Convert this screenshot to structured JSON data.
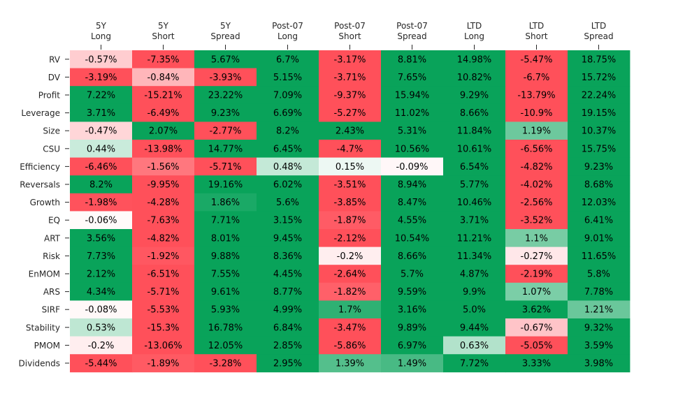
{
  "chart_data": {
    "type": "heatmap",
    "title": "",
    "columns": [
      [
        "5Y",
        "Long"
      ],
      [
        "5Y",
        "Short"
      ],
      [
        "5Y",
        "Spread"
      ],
      [
        "Post-07",
        "Long"
      ],
      [
        "Post-07",
        "Short"
      ],
      [
        "Post-07",
        "Spread"
      ],
      [
        "LTD",
        "Long"
      ],
      [
        "LTD",
        "Short"
      ],
      [
        "LTD",
        "Spread"
      ]
    ],
    "rows": [
      "RV",
      "DV",
      "Profit",
      "Leverage",
      "Size",
      "CSU",
      "Efficiency",
      "Reversals",
      "Growth",
      "EQ",
      "ART",
      "Risk",
      "EnMOM",
      "ARS",
      "SIRF",
      "Stability",
      "PMOM",
      "Dividends"
    ],
    "values": [
      [
        -0.57,
        -7.35,
        5.67,
        6.7,
        -3.17,
        8.81,
        14.98,
        -5.47,
        18.75
      ],
      [
        -3.19,
        -0.84,
        -3.93,
        5.15,
        -3.71,
        7.65,
        10.82,
        -6.7,
        15.72
      ],
      [
        7.22,
        -15.21,
        23.22,
        7.09,
        -9.37,
        15.94,
        9.29,
        -13.79,
        22.24
      ],
      [
        3.71,
        -6.49,
        9.23,
        6.69,
        -5.27,
        11.02,
        8.66,
        -10.9,
        19.15
      ],
      [
        -0.47,
        2.07,
        -2.77,
        8.2,
        2.43,
        5.31,
        11.84,
        1.19,
        10.37
      ],
      [
        0.44,
        -13.98,
        14.77,
        6.45,
        -4.7,
        10.56,
        10.61,
        -6.56,
        15.75
      ],
      [
        -6.46,
        -1.56,
        -5.71,
        0.48,
        0.15,
        -0.09,
        6.54,
        -4.82,
        9.23
      ],
      [
        8.2,
        -9.95,
        19.16,
        6.02,
        -3.51,
        8.94,
        5.77,
        -4.02,
        8.68
      ],
      [
        -1.98,
        -4.28,
        1.86,
        5.6,
        -3.85,
        8.47,
        10.46,
        -2.56,
        12.03
      ],
      [
        -0.06,
        -7.63,
        7.71,
        3.15,
        -1.87,
        4.55,
        3.71,
        -3.52,
        6.41
      ],
      [
        3.56,
        -4.82,
        8.01,
        9.45,
        -2.12,
        10.54,
        11.21,
        1.1,
        9.01
      ],
      [
        7.73,
        -1.92,
        9.88,
        8.36,
        -0.2,
        8.66,
        11.34,
        -0.27,
        11.65
      ],
      [
        2.12,
        -6.51,
        7.55,
        4.45,
        -2.64,
        5.7,
        4.87,
        -2.19,
        5.8
      ],
      [
        4.34,
        -5.71,
        9.61,
        8.77,
        -1.82,
        9.59,
        9.9,
        1.07,
        7.78
      ],
      [
        -0.08,
        -5.53,
        5.93,
        4.99,
        1.7,
        3.16,
        5.0,
        3.62,
        1.21
      ],
      [
        0.53,
        -15.3,
        16.78,
        6.84,
        -3.47,
        9.89,
        9.44,
        -0.67,
        9.32
      ],
      [
        -0.2,
        -13.06,
        12.05,
        2.85,
        -5.86,
        6.97,
        0.63,
        -5.05,
        3.59
      ],
      [
        -5.44,
        -1.89,
        -3.28,
        2.95,
        1.39,
        1.49,
        7.72,
        3.33,
        3.98
      ]
    ],
    "labels": [
      [
        "-0.57%",
        "-7.35%",
        "5.67%",
        "6.7%",
        "-3.17%",
        "8.81%",
        "14.98%",
        "-5.47%",
        "18.75%"
      ],
      [
        "-3.19%",
        "-0.84%",
        "-3.93%",
        "5.15%",
        "-3.71%",
        "7.65%",
        "10.82%",
        "-6.7%",
        "15.72%"
      ],
      [
        "7.22%",
        "-15.21%",
        "23.22%",
        "7.09%",
        "-9.37%",
        "15.94%",
        "9.29%",
        "-13.79%",
        "22.24%"
      ],
      [
        "3.71%",
        "-6.49%",
        "9.23%",
        "6.69%",
        "-5.27%",
        "11.02%",
        "8.66%",
        "-10.9%",
        "19.15%"
      ],
      [
        "-0.47%",
        "2.07%",
        "-2.77%",
        "8.2%",
        "2.43%",
        "5.31%",
        "11.84%",
        "1.19%",
        "10.37%"
      ],
      [
        "0.44%",
        "-13.98%",
        "14.77%",
        "6.45%",
        "-4.7%",
        "10.56%",
        "10.61%",
        "-6.56%",
        "15.75%"
      ],
      [
        "-6.46%",
        "-1.56%",
        "-5.71%",
        "0.48%",
        "0.15%",
        "-0.09%",
        "6.54%",
        "-4.82%",
        "9.23%"
      ],
      [
        "8.2%",
        "-9.95%",
        "19.16%",
        "6.02%",
        "-3.51%",
        "8.94%",
        "5.77%",
        "-4.02%",
        "8.68%"
      ],
      [
        "-1.98%",
        "-4.28%",
        "1.86%",
        "5.6%",
        "-3.85%",
        "8.47%",
        "10.46%",
        "-2.56%",
        "12.03%"
      ],
      [
        "-0.06%",
        "-7.63%",
        "7.71%",
        "3.15%",
        "-1.87%",
        "4.55%",
        "3.71%",
        "-3.52%",
        "6.41%"
      ],
      [
        "3.56%",
        "-4.82%",
        "8.01%",
        "9.45%",
        "-2.12%",
        "10.54%",
        "11.21%",
        "1.1%",
        "9.01%"
      ],
      [
        "7.73%",
        "-1.92%",
        "9.88%",
        "8.36%",
        "-0.2%",
        "8.66%",
        "11.34%",
        "-0.27%",
        "11.65%"
      ],
      [
        "2.12%",
        "-6.51%",
        "7.55%",
        "4.45%",
        "-2.64%",
        "5.7%",
        "4.87%",
        "-2.19%",
        "5.8%"
      ],
      [
        "4.34%",
        "-5.71%",
        "9.61%",
        "8.77%",
        "-1.82%",
        "9.59%",
        "9.9%",
        "1.07%",
        "7.78%"
      ],
      [
        "-0.08%",
        "-5.53%",
        "5.93%",
        "4.99%",
        "1.7%",
        "3.16%",
        "5.0%",
        "3.62%",
        "1.21%"
      ],
      [
        "0.53%",
        "-15.3%",
        "16.78%",
        "6.84%",
        "-3.47%",
        "9.89%",
        "9.44%",
        "-0.67%",
        "9.32%"
      ],
      [
        "-0.2%",
        "-13.06%",
        "12.05%",
        "2.85%",
        "-5.86%",
        "6.97%",
        "0.63%",
        "-5.05%",
        "3.59%"
      ],
      [
        "-5.44%",
        "-1.89%",
        "-3.28%",
        "2.95%",
        "1.39%",
        "1.49%",
        "7.72%",
        "3.33%",
        "3.98%"
      ]
    ],
    "colormap": {
      "negative": "#ff505a",
      "neutral": "#ffffff",
      "positive": "#09a35a",
      "saturation_abs": 2
    },
    "grid": false,
    "legend": "none"
  }
}
